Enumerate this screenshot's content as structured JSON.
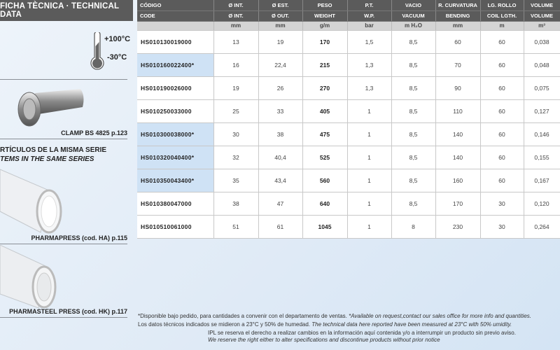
{
  "left_panel": {
    "title": "FICHA TÈCNICA · TECHNICAL DATA",
    "temp_max": "+100°C",
    "temp_min": "-30°C",
    "accessory_caption": "CLAMP BS 4825 p.123",
    "series_es": "RTÍCULOS DE LA MISMA SERIE",
    "series_en": "TEMS IN THE SAME SERIES",
    "related": [
      {
        "caption": "PHARMAPRESS (cod. HA) p.115"
      },
      {
        "caption": "PHARMASTEEL PRESS (cod. HK) p.117"
      }
    ],
    "icons": [
      "thermometer-icon"
    ]
  },
  "table": {
    "headers_es": [
      "CÓDIGO",
      "Ø INT.",
      "Ø EST.",
      "PESO",
      "P.T.",
      "VACIO",
      "R. CURVATURA",
      "LG. ROLLO",
      "VOLUME"
    ],
    "headers_en": [
      "CODE",
      "Ø INT.",
      "Ø OUT.",
      "WEIGHT",
      "W.P.",
      "VACUUM",
      "BENDING",
      "COIL LGTH.",
      "VOLUME"
    ],
    "units": [
      "",
      "mm",
      "mm",
      "g/m",
      "bar",
      "m H₂O",
      "mm",
      "m",
      "m³"
    ],
    "rows": [
      {
        "code": "HS010130019000",
        "highlight": false,
        "cells": [
          "13",
          "19",
          "170",
          "1,5",
          "8,5",
          "60",
          "60",
          "0,038"
        ]
      },
      {
        "code": "HS010160022400*",
        "highlight": true,
        "cells": [
          "16",
          "22,4",
          "215",
          "1,3",
          "8,5",
          "70",
          "60",
          "0,048"
        ]
      },
      {
        "code": "HS010190026000",
        "highlight": false,
        "cells": [
          "19",
          "26",
          "270",
          "1,3",
          "8,5",
          "90",
          "60",
          "0,075"
        ]
      },
      {
        "code": "HS010250033000",
        "highlight": false,
        "cells": [
          "25",
          "33",
          "405",
          "1",
          "8,5",
          "110",
          "60",
          "0,127"
        ]
      },
      {
        "code": "HS010300038000*",
        "highlight": true,
        "cells": [
          "30",
          "38",
          "475",
          "1",
          "8,5",
          "140",
          "60",
          "0,146"
        ]
      },
      {
        "code": "HS010320040400*",
        "highlight": true,
        "cells": [
          "32",
          "40,4",
          "525",
          "1",
          "8,5",
          "140",
          "60",
          "0,155"
        ]
      },
      {
        "code": "HS010350043400*",
        "highlight": true,
        "cells": [
          "35",
          "43,4",
          "560",
          "1",
          "8,5",
          "160",
          "60",
          "0,167"
        ]
      },
      {
        "code": "HS010380047000",
        "highlight": false,
        "cells": [
          "38",
          "47",
          "640",
          "1",
          "8,5",
          "170",
          "30",
          "0,120"
        ]
      },
      {
        "code": "HS010510061000",
        "highlight": false,
        "cells": [
          "51",
          "61",
          "1045",
          "1",
          "8",
          "230",
          "30",
          "0,264"
        ]
      }
    ]
  },
  "footer": {
    "line1_es": "*Disponible bajo pedido, para cantidades a convenir con el departamento de ventas. ",
    "line1_en": "*Available on request,contact our sales office for more info and quantities.",
    "line2_es": "Los datos técnicos indicados se midieron a 23°C y 50% de humedad. ",
    "line2_en": "The technical data here reported have been measured at 23°C with 50% umidity.",
    "line3": "IPL se reserva el derecho a realizar cambios en la información aquí contenida y/o a interrumpir un producto sin previo aviso.",
    "line4": "We reserve the right either to alter specifications and discontinue products without prior notice"
  },
  "colors": {
    "header": "#5b5b5b",
    "highlight": "#cfe2f5",
    "background": "#dfeaf6"
  }
}
